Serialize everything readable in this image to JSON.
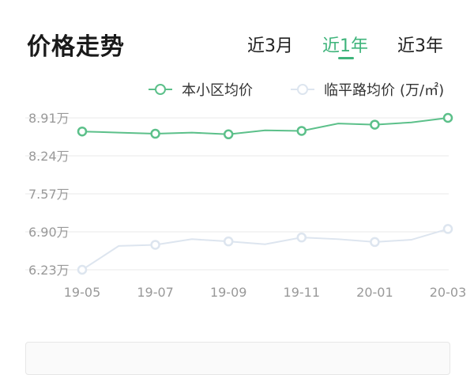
{
  "header": {
    "title": "价格走势",
    "tabs": [
      {
        "label": "近3月",
        "active": false
      },
      {
        "label": "近1年",
        "active": true
      },
      {
        "label": "近3年",
        "active": false
      }
    ]
  },
  "colors": {
    "accent": "#3fb47b",
    "series_community": "#5cc08a",
    "series_nearby": "#dde5ef",
    "grid": "#e9e9e9",
    "tick": "#999999"
  },
  "chart_data": {
    "type": "line",
    "x": [
      "19-05",
      "19-06",
      "19-07",
      "19-08",
      "19-09",
      "19-10",
      "19-11",
      "19-12",
      "20-01",
      "20-02",
      "20-03"
    ],
    "x_tick_labels": [
      "19-05",
      "19-07",
      "19-09",
      "19-11",
      "20-01",
      "20-03"
    ],
    "y_tick_labels": [
      "6.23万",
      "6.90万",
      "7.57万",
      "8.24万",
      "8.91万"
    ],
    "ylim": [
      6.23,
      8.91
    ],
    "grid": true,
    "legend_position": "top-right",
    "legend_unit": "(万/㎡)",
    "series": [
      {
        "name": "本小区均价",
        "values": [
          8.67,
          8.65,
          8.63,
          8.65,
          8.62,
          8.69,
          8.68,
          8.81,
          8.79,
          8.83,
          8.91
        ],
        "marker_indices": [
          0,
          2,
          4,
          6,
          8,
          10
        ]
      },
      {
        "name": "临平路均价",
        "values": [
          6.23,
          6.65,
          6.67,
          6.77,
          6.73,
          6.68,
          6.8,
          6.77,
          6.72,
          6.76,
          6.95
        ],
        "marker_indices": [
          0,
          2,
          4,
          6,
          8,
          10
        ]
      }
    ]
  }
}
